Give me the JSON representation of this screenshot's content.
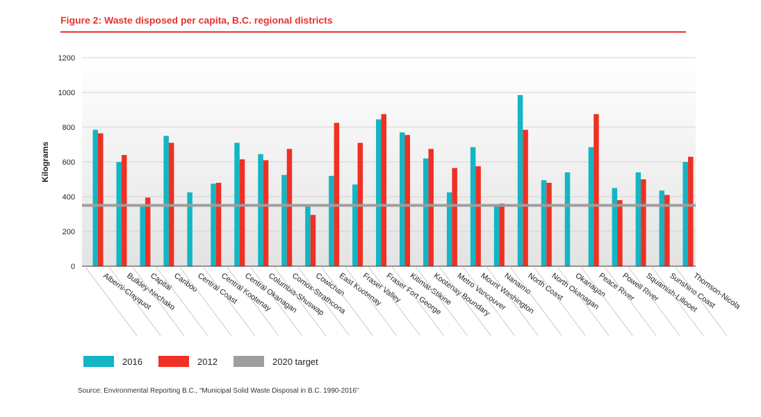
{
  "title": "Figure 2: Waste disposed per capita, B.C. regional districts",
  "source": "Source: Environmental Reporting B.C., “Municipal Solid Waste Disposal in B.C. 1990-2016”",
  "colors": {
    "series_2016": "#14b5c4",
    "series_2012": "#ee3124",
    "target": "#9e9e9e",
    "title": "#e8312f"
  },
  "legend": [
    {
      "label": "2016",
      "color": "#14b5c4"
    },
    {
      "label": "2012",
      "color": "#ee3124"
    },
    {
      "label": "2020 target",
      "color": "#9e9e9e"
    }
  ],
  "chart_data": {
    "type": "bar",
    "ylabel": "Kilograms",
    "xlabel": "",
    "ylim": [
      0,
      1200
    ],
    "yticks": [
      0,
      200,
      400,
      600,
      800,
      1000,
      1200
    ],
    "target": 350,
    "categories": [
      "Alberni-Clayquot",
      "Bulkley-Nechako",
      "Capital",
      "Cariboo",
      "Central Coast",
      "Central Kootenay",
      "Central Okanagan",
      "Columbia-Shuswap",
      "Comox-Strathcona",
      "Cowichan",
      "East Kootenay",
      "Fraser Valley",
      "Fraser Fort George",
      "Kitimat-Stikine",
      "Kootenay Boundary",
      "Metro Vancouver",
      "Mount Washington",
      "Nanaimo",
      "North Coast",
      "North Okanagan",
      "Okanagan",
      "Peace River",
      "Powell River",
      "Squamish-Lillooet",
      "Sunshine Coast",
      "Thomson-Nicola"
    ],
    "series": [
      {
        "name": "2016",
        "values": [
          785,
          600,
          355,
          750,
          425,
          475,
          710,
          645,
          525,
          345,
          520,
          470,
          845,
          770,
          620,
          425,
          685,
          345,
          985,
          495,
          540,
          685,
          450,
          540,
          435,
          600
        ]
      },
      {
        "name": "2012",
        "values": [
          765,
          640,
          395,
          710,
          null,
          480,
          615,
          610,
          675,
          295,
          825,
          710,
          875,
          755,
          675,
          565,
          575,
          360,
          785,
          480,
          null,
          875,
          380,
          500,
          410,
          630
        ]
      }
    ]
  }
}
